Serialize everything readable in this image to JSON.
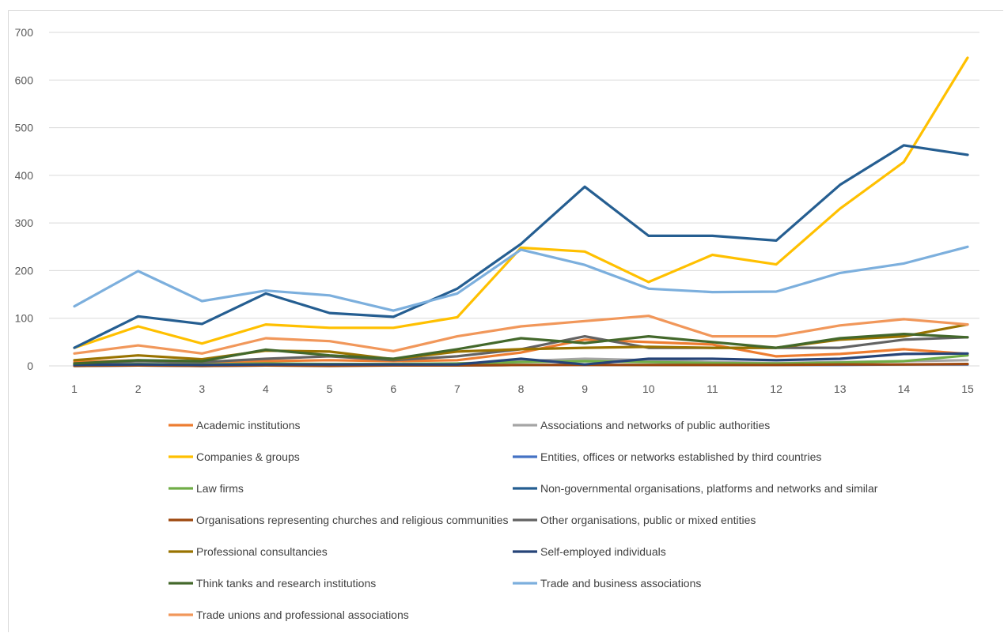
{
  "chart_data": {
    "type": "line",
    "title": "",
    "xlabel": "",
    "ylabel": "",
    "x": [
      1,
      2,
      3,
      4,
      5,
      6,
      7,
      8,
      9,
      10,
      11,
      12,
      13,
      14,
      15
    ],
    "x_tick_labels": [
      "1",
      "2",
      "3",
      "4",
      "5",
      "6",
      "7",
      "8",
      "9",
      "10",
      "11",
      "12",
      "13",
      "14",
      "15"
    ],
    "ylim": [
      0,
      700
    ],
    "y_ticks": [
      0,
      100,
      200,
      300,
      400,
      500,
      600,
      700
    ],
    "y_tick_labels": [
      "0",
      "100",
      "200",
      "300",
      "400",
      "500",
      "600",
      "700"
    ],
    "grid": true,
    "legend_position": "bottom",
    "series": [
      {
        "name": "Academic institutions",
        "color": "#ED7D31",
        "values": [
          8,
          12,
          5,
          10,
          12,
          10,
          12,
          28,
          55,
          50,
          45,
          20,
          25,
          35,
          25
        ]
      },
      {
        "name": "Associations and networks of public authorities",
        "color": "#A5A5A5",
        "values": [
          2,
          3,
          2,
          4,
          3,
          3,
          5,
          10,
          15,
          12,
          8,
          6,
          8,
          10,
          12
        ]
      },
      {
        "name": "Companies & groups",
        "color": "#FFC000",
        "values": [
          38,
          83,
          47,
          87,
          80,
          80,
          102,
          248,
          240,
          176,
          233,
          213,
          330,
          428,
          647
        ]
      },
      {
        "name": "Entities, offices or networks established by third countries",
        "color": "#4472C4",
        "values": [
          0,
          1,
          0,
          1,
          1,
          1,
          1,
          2,
          2,
          2,
          2,
          2,
          2,
          3,
          3
        ]
      },
      {
        "name": "Law firms",
        "color": "#70AD47",
        "values": [
          3,
          4,
          3,
          5,
          4,
          4,
          5,
          8,
          10,
          8,
          6,
          5,
          7,
          10,
          22
        ]
      },
      {
        "name": "Non-governmental organisations, platforms and networks and similar",
        "color": "#255E91",
        "values": [
          38,
          104,
          88,
          152,
          111,
          103,
          162,
          256,
          376,
          273,
          273,
          263,
          380,
          463,
          443
        ]
      },
      {
        "name": "Organisations representing churches and religious communities",
        "color": "#9E480E",
        "values": [
          0,
          1,
          0,
          1,
          0,
          1,
          1,
          2,
          2,
          2,
          2,
          2,
          3,
          3,
          4
        ]
      },
      {
        "name": "Other organisations, public or mixed entities",
        "color": "#636363",
        "values": [
          5,
          10,
          8,
          15,
          20,
          12,
          20,
          35,
          62,
          38,
          38,
          38,
          38,
          55,
          60
        ]
      },
      {
        "name": "Professional consultancies",
        "color": "#997300",
        "values": [
          12,
          22,
          14,
          32,
          30,
          14,
          30,
          35,
          38,
          40,
          38,
          38,
          55,
          62,
          87
        ]
      },
      {
        "name": "Self-employed individuals",
        "color": "#264478",
        "values": [
          2,
          3,
          2,
          3,
          3,
          3,
          3,
          15,
          3,
          15,
          15,
          12,
          15,
          25,
          26
        ]
      },
      {
        "name": "Think tanks and research institutions",
        "color": "#43682B",
        "values": [
          5,
          12,
          10,
          34,
          22,
          15,
          35,
          58,
          48,
          62,
          50,
          38,
          58,
          67,
          60
        ]
      },
      {
        "name": "Trade and business associations",
        "color": "#7CAFDD",
        "values": [
          125,
          199,
          136,
          158,
          148,
          116,
          152,
          244,
          212,
          162,
          155,
          156,
          195,
          215,
          250
        ]
      },
      {
        "name": "Trade unions and professional associations",
        "color": "#F1975A",
        "values": [
          26,
          43,
          26,
          58,
          52,
          31,
          62,
          83,
          94,
          105,
          62,
          62,
          85,
          98,
          87
        ]
      }
    ]
  }
}
